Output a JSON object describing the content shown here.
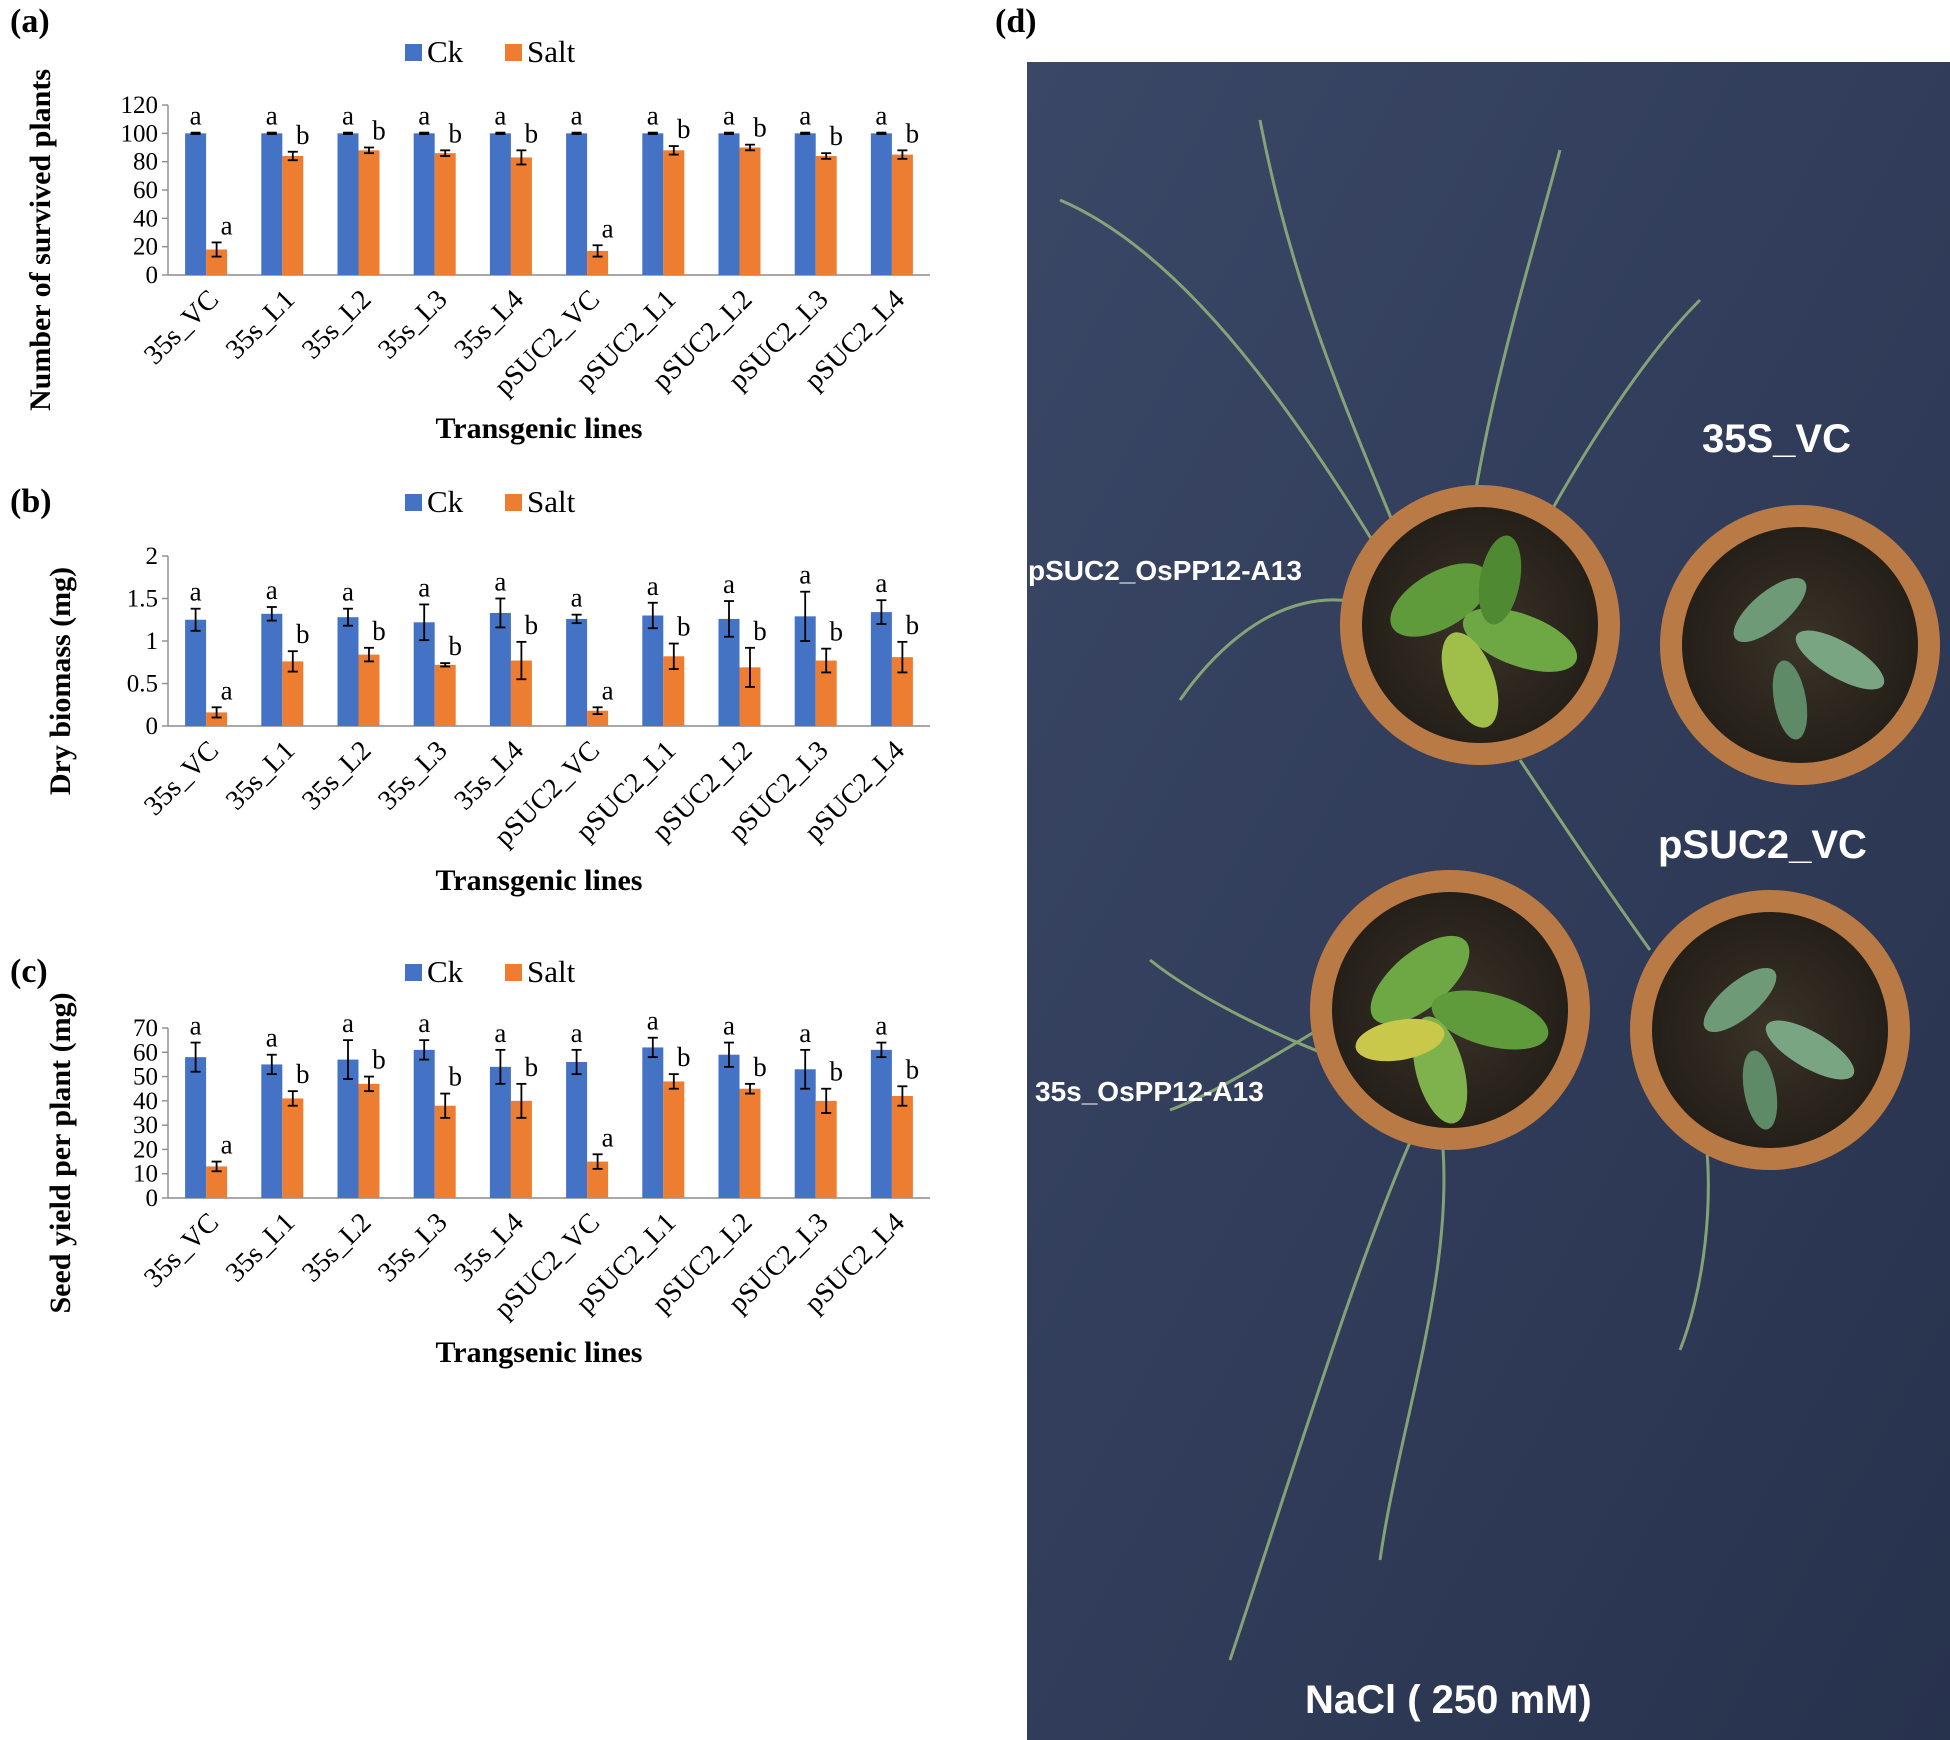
{
  "colors": {
    "ck": "#4472C4",
    "salt": "#ED7D31",
    "photo_bg": "#2d3a55"
  },
  "chart_data": [
    {
      "type": "bar",
      "panel_label": "(a)",
      "legend": [
        "Ck",
        "Salt"
      ],
      "ylabel": "Number of survived plants",
      "xlabel": "Transgenic lines",
      "ylim": [
        0,
        120
      ],
      "yticks": [
        "0",
        "20",
        "40",
        "60",
        "80",
        "100",
        "120"
      ],
      "categories": [
        "35s_VC",
        "35s_L1",
        "35s_L2",
        "35s_L3",
        "35s_L4",
        "pSUC2_VC",
        "pSUC2_L1",
        "pSUC2_L2",
        "pSUC2_L3",
        "pSUC2_L4"
      ],
      "series": [
        {
          "name": "Ck",
          "values": [
            100,
            100,
            100,
            100,
            100,
            100,
            100,
            100,
            100,
            100
          ],
          "errors": [
            0.5,
            0.5,
            0.5,
            0.5,
            0.5,
            0.5,
            0.5,
            0.5,
            0.5,
            0.5
          ],
          "labels": [
            "a",
            "a",
            "a",
            "a",
            "a",
            "a",
            "a",
            "a",
            "a",
            "a"
          ]
        },
        {
          "name": "Salt",
          "values": [
            18,
            84,
            88,
            86,
            83,
            17,
            88,
            90,
            84,
            85
          ],
          "errors": [
            5,
            3,
            2,
            2,
            5,
            4,
            3,
            2,
            2,
            3
          ],
          "labels": [
            "a",
            "b",
            "b",
            "b",
            "b",
            "a",
            "b",
            "b",
            "b",
            "b"
          ]
        }
      ]
    },
    {
      "type": "bar",
      "panel_label": "(b)",
      "legend": [
        "Ck",
        "Salt"
      ],
      "ylabel": "Dry biomass (mg)",
      "xlabel": "Transgenic lines",
      "ylim": [
        0,
        2
      ],
      "yticks": [
        "0",
        "0.5",
        "1",
        "1.5",
        "2"
      ],
      "categories": [
        "35s_VC",
        "35s_L1",
        "35s_L2",
        "35s_L3",
        "35s_L4",
        "pSUC2_VC",
        "pSUC2_L1",
        "pSUC2_L2",
        "pSUC2_L3",
        "pSUC2_L4"
      ],
      "series": [
        {
          "name": "Ck",
          "values": [
            1.25,
            1.32,
            1.28,
            1.22,
            1.33,
            1.26,
            1.3,
            1.26,
            1.29,
            1.34
          ],
          "errors": [
            0.13,
            0.08,
            0.1,
            0.21,
            0.17,
            0.05,
            0.15,
            0.21,
            0.29,
            0.14
          ],
          "labels": [
            "a",
            "a",
            "a",
            "a",
            "a",
            "a",
            "a",
            "a",
            "a",
            "a"
          ]
        },
        {
          "name": "Salt",
          "values": [
            0.16,
            0.76,
            0.84,
            0.72,
            0.77,
            0.18,
            0.82,
            0.69,
            0.77,
            0.81
          ],
          "errors": [
            0.06,
            0.12,
            0.08,
            0.02,
            0.22,
            0.04,
            0.15,
            0.23,
            0.14,
            0.18
          ],
          "labels": [
            "a",
            "b",
            "b",
            "b",
            "b",
            "a",
            "b",
            "b",
            "b",
            "b"
          ]
        }
      ]
    },
    {
      "type": "bar",
      "panel_label": "(c)",
      "legend": [
        "Ck",
        "Salt"
      ],
      "ylabel": "Seed yield per plant (mg)",
      "xlabel": "Trangsenic lines",
      "ylim": [
        0,
        70
      ],
      "yticks": [
        "0",
        "10",
        "20",
        "30",
        "40",
        "50",
        "60",
        "70"
      ],
      "categories": [
        "35s_VC",
        "35s_L1",
        "35s_L2",
        "35s_L3",
        "35s_L4",
        "pSUC2_VC",
        "pSUC2_L1",
        "pSUC2_L2",
        "pSUC2_L3",
        "pSUC2_L4"
      ],
      "series": [
        {
          "name": "Ck",
          "values": [
            58,
            55,
            57,
            61,
            54,
            56,
            62,
            59,
            53,
            61
          ],
          "errors": [
            6,
            4,
            8,
            4,
            7,
            5,
            4,
            5,
            8,
            3
          ],
          "labels": [
            "a",
            "a",
            "a",
            "a",
            "a",
            "a",
            "a",
            "a",
            "a",
            "a"
          ]
        },
        {
          "name": "Salt",
          "values": [
            13,
            41,
            47,
            38,
            40,
            15,
            48,
            45,
            40,
            42
          ],
          "errors": [
            2,
            3,
            3,
            5,
            7,
            3,
            3,
            2,
            5,
            4
          ],
          "labels": [
            "a",
            "b",
            "b",
            "b",
            "b",
            "a",
            "b",
            "b",
            "b",
            "b"
          ]
        }
      ]
    }
  ],
  "photo": {
    "panel_label": "(d)",
    "labels": {
      "top_right": "35S_VC",
      "top_left": "pSUC2_OsPP12-A13",
      "bottom_right": "pSUC2_VC",
      "bottom_left": "35s_OsPP12-A13",
      "caption": "NaCl ( 250 mM)"
    }
  }
}
